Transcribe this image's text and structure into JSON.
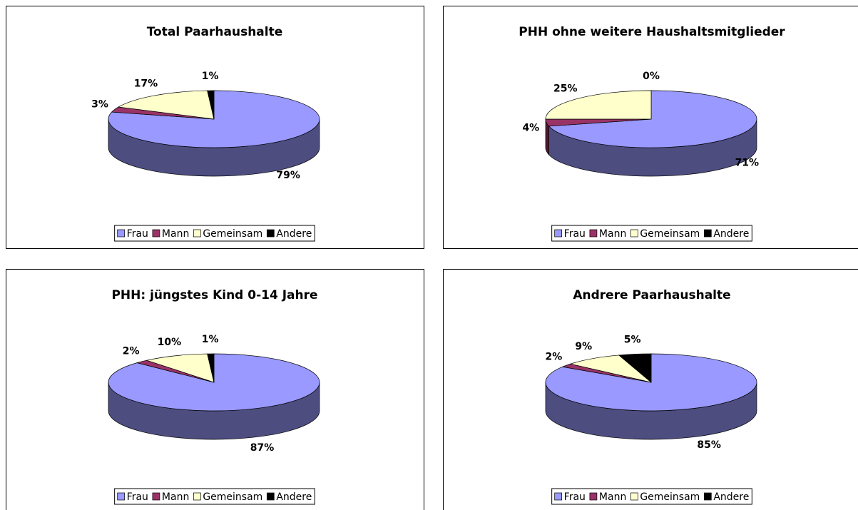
{
  "chart_data": [
    {
      "type": "pie",
      "title": "Total Paarhaushalte",
      "categories": [
        "Frau",
        "Mann",
        "Gemeinsam",
        "Andere"
      ],
      "values": [
        79,
        3,
        17,
        1
      ],
      "value_labels": [
        "79%",
        "3%",
        "17%",
        "1%"
      ],
      "colors": [
        "#9999ff",
        "#993366",
        "#ffffcc",
        "#000000"
      ],
      "legend": "bottom"
    },
    {
      "type": "pie",
      "title": "PHH ohne weitere Haushaltsmitglieder",
      "categories": [
        "Frau",
        "Mann",
        "Gemeinsam",
        "Andere"
      ],
      "values": [
        71,
        4,
        25,
        0
      ],
      "value_labels": [
        "71%",
        "4%",
        "25%",
        "0%"
      ],
      "colors": [
        "#9999ff",
        "#993366",
        "#ffffcc",
        "#000000"
      ],
      "legend": "bottom"
    },
    {
      "type": "pie",
      "title": "PHH: jüngstes Kind 0-14 Jahre",
      "categories": [
        "Frau",
        "Mann",
        "Gemeinsam",
        "Andere"
      ],
      "values": [
        87,
        2,
        10,
        1
      ],
      "value_labels": [
        "87%",
        "2%",
        "10%",
        "1%"
      ],
      "colors": [
        "#9999ff",
        "#993366",
        "#ffffcc",
        "#000000"
      ],
      "legend": "bottom"
    },
    {
      "type": "pie",
      "title": "Andrere Paarhaushalte",
      "categories": [
        "Frau",
        "Mann",
        "Gemeinsam",
        "Andere"
      ],
      "values": [
        85,
        2,
        9,
        5
      ],
      "value_labels": [
        "85%",
        "2%",
        "9%",
        "5%"
      ],
      "colors": [
        "#9999ff",
        "#993366",
        "#ffffcc",
        "#000000"
      ],
      "legend": "bottom"
    }
  ]
}
